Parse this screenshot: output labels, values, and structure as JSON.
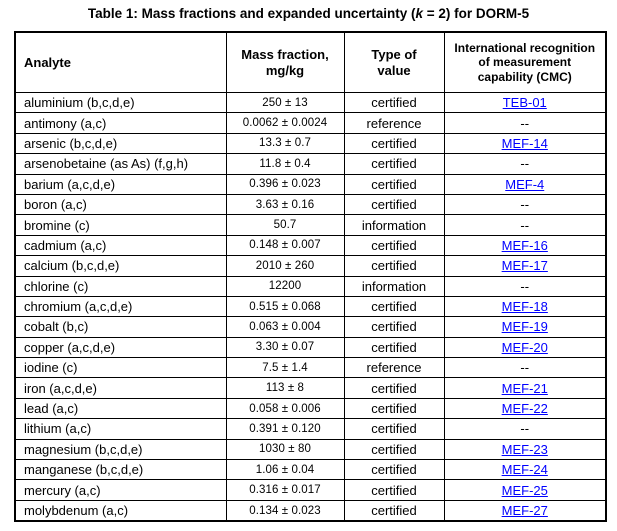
{
  "title": {
    "prefix": "Table 1: Mass fractions and expanded uncertainty (",
    "italic_k": "k",
    "suffix": " = 2) for DORM-5"
  },
  "table": {
    "link_color": "#0000ff",
    "headers": {
      "analyte": "Analyte",
      "mass_fraction": "Mass fraction,\nmg/kg",
      "type_of_value": "Type of\nvalue",
      "cmc": "International recognition\nof measurement\ncapability (CMC)"
    },
    "rows": [
      {
        "analyte": "aluminium (b,c,d,e)",
        "mass_fraction": "250 ± 13",
        "type": "certified",
        "cmc": "TEB-01",
        "cmc_is_link": true
      },
      {
        "analyte": "antimony (a,c)",
        "mass_fraction": "0.0062 ± 0.0024",
        "type": "reference",
        "cmc": "--",
        "cmc_is_link": false
      },
      {
        "analyte": "arsenic (b,c,d,e)",
        "mass_fraction": "13.3 ± 0.7",
        "type": "certified",
        "cmc": "MEF-14",
        "cmc_is_link": true
      },
      {
        "analyte": "arsenobetaine (as As) (f,g,h)",
        "mass_fraction": "11.8 ± 0.4",
        "type": "certified",
        "cmc": "--",
        "cmc_is_link": false
      },
      {
        "analyte": "barium (a,c,d,e)",
        "mass_fraction": "0.396 ± 0.023",
        "type": "certified",
        "cmc": "MEF-4",
        "cmc_is_link": true
      },
      {
        "analyte": "boron (a,c)",
        "mass_fraction": "3.63 ± 0.16",
        "type": "certified",
        "cmc": "--",
        "cmc_is_link": false
      },
      {
        "analyte": "bromine (c)",
        "mass_fraction": "50.7",
        "type": "information",
        "cmc": "--",
        "cmc_is_link": false
      },
      {
        "analyte": "cadmium (a,c)",
        "mass_fraction": "0.148 ± 0.007",
        "type": "certified",
        "cmc": "MEF-16",
        "cmc_is_link": true
      },
      {
        "analyte": "calcium (b,c,d,e)",
        "mass_fraction": "2010 ± 260",
        "type": "certified",
        "cmc": "MEF-17",
        "cmc_is_link": true
      },
      {
        "analyte": "chlorine (c)",
        "mass_fraction": "12200",
        "type": "information",
        "cmc": "--",
        "cmc_is_link": false
      },
      {
        "analyte": "chromium (a,c,d,e)",
        "mass_fraction": "0.515 ± 0.068",
        "type": "certified",
        "cmc": "MEF-18",
        "cmc_is_link": true
      },
      {
        "analyte": "cobalt (b,c)",
        "mass_fraction": "0.063 ± 0.004",
        "type": "certified",
        "cmc": "MEF-19",
        "cmc_is_link": true
      },
      {
        "analyte": "copper (a,c,d,e)",
        "mass_fraction": "3.30 ± 0.07",
        "type": "certified",
        "cmc": "MEF-20",
        "cmc_is_link": true
      },
      {
        "analyte": "iodine (c)",
        "mass_fraction": "7.5 ± 1.4",
        "type": "reference",
        "cmc": "--",
        "cmc_is_link": false
      },
      {
        "analyte": "iron (a,c,d,e)",
        "mass_fraction": "113 ± 8",
        "type": "certified",
        "cmc": "MEF-21",
        "cmc_is_link": true
      },
      {
        "analyte": "lead (a,c)",
        "mass_fraction": "0.058 ± 0.006",
        "type": "certified",
        "cmc": "MEF-22",
        "cmc_is_link": true
      },
      {
        "analyte": "lithium (a,c)",
        "mass_fraction": "0.391 ± 0.120",
        "type": "certified",
        "cmc": "--",
        "cmc_is_link": false
      },
      {
        "analyte": "magnesium (b,c,d,e)",
        "mass_fraction": "1030 ± 80",
        "type": "certified",
        "cmc": "MEF-23",
        "cmc_is_link": true
      },
      {
        "analyte": "manganese (b,c,d,e)",
        "mass_fraction": "1.06 ± 0.04",
        "type": "certified",
        "cmc": "MEF-24",
        "cmc_is_link": true
      },
      {
        "analyte": "mercury (a,c)",
        "mass_fraction": "0.316 ± 0.017",
        "type": "certified",
        "cmc": "MEF-25",
        "cmc_is_link": true
      },
      {
        "analyte": "molybdenum (a,c)",
        "mass_fraction": "0.134 ± 0.023",
        "type": "certified",
        "cmc": "MEF-27",
        "cmc_is_link": true
      }
    ]
  }
}
